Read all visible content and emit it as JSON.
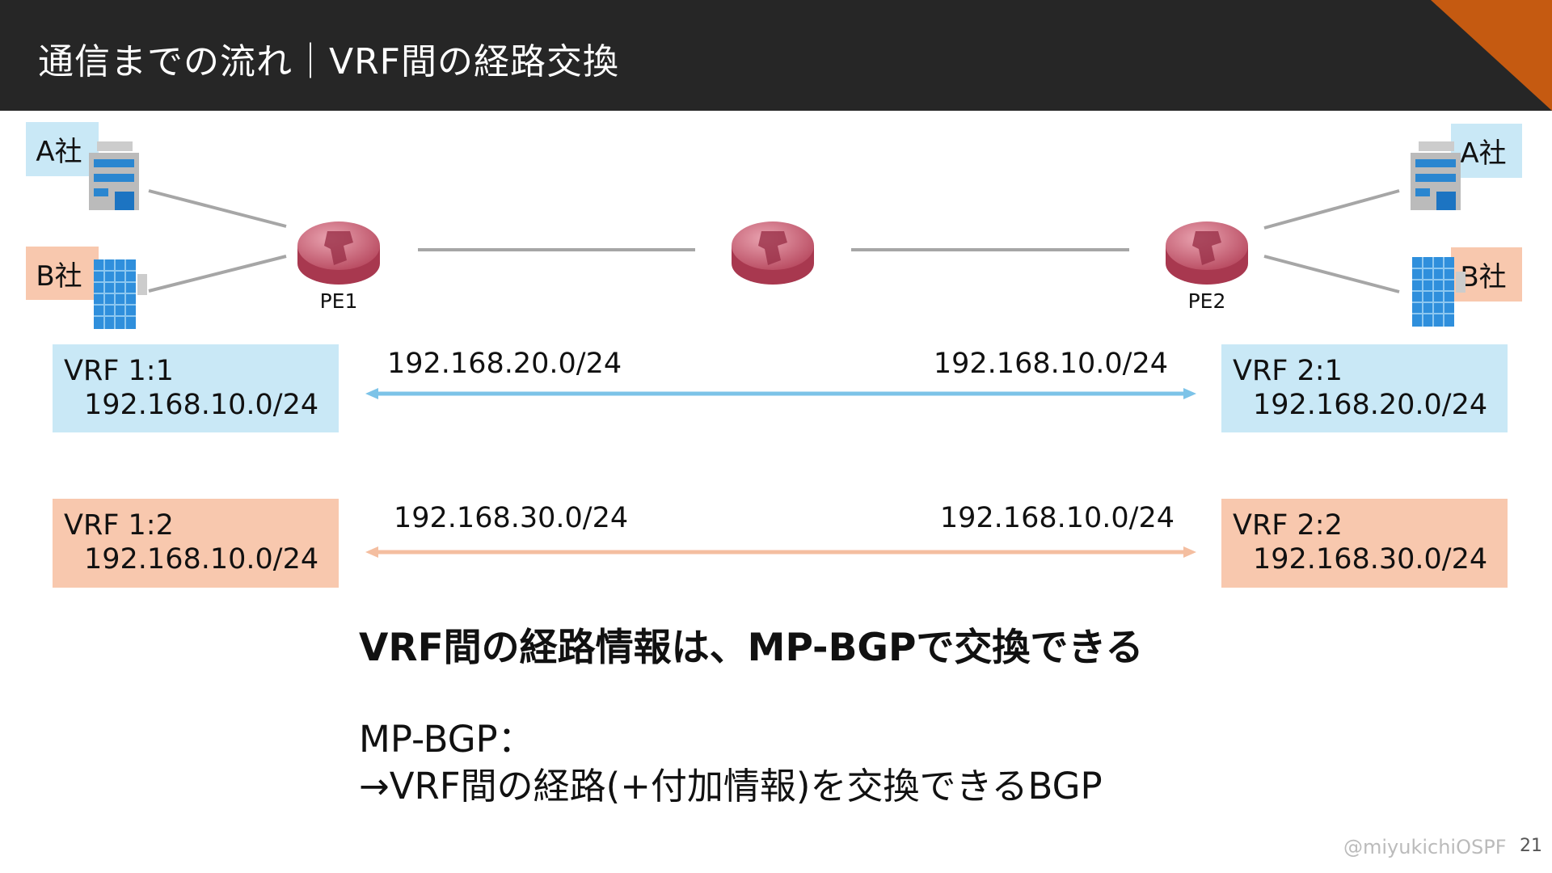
{
  "header": {
    "title": "通信までの流れ｜VRF間の経路交換",
    "bg": "#262626",
    "accent": "#c55a11"
  },
  "sites": {
    "left_a": "A社",
    "left_b": "B社",
    "right_a": "A社",
    "right_b": "B社"
  },
  "routers": {
    "pe1": "PE1",
    "pe2": "PE2",
    "icon": "router-icon"
  },
  "vrfs": {
    "v11": {
      "name": "VRF 1:1",
      "ip": "192.168.10.0/24"
    },
    "v12": {
      "name": "VRF 1:2",
      "ip": "192.168.10.0/24"
    },
    "v21": {
      "name": "VRF 2:1",
      "ip": "192.168.20.0/24"
    },
    "v22": {
      "name": "VRF 2:2",
      "ip": "192.168.30.0/24"
    }
  },
  "exchanges": {
    "blue": {
      "left": "192.168.20.0/24",
      "right": "192.168.10.0/24",
      "color": "#7cc3e8"
    },
    "orange": {
      "left": "192.168.30.0/24",
      "right": "192.168.10.0/24",
      "color": "#f4bea0"
    }
  },
  "body": {
    "bold": "VRF間の経路情報は、MP-BGPで交換できる",
    "line1": "MP-BGP：",
    "line2": "→VRF間の経路(+付加情報)を交換できるBGP"
  },
  "footer": {
    "credit": "@miyukichiOSPF",
    "page": "21"
  }
}
